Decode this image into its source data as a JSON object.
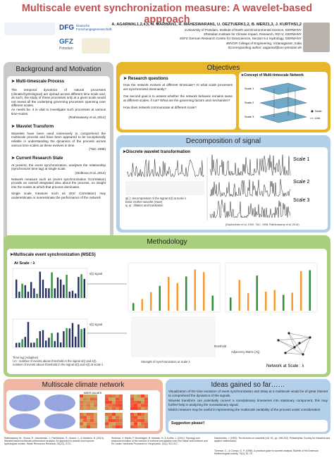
{
  "header": {
    "title": "Multiscale event synchronization measure: A wavelet-based approach",
    "authors": "A. AGARWAL1,2,4,5, N. MARWAN1, R. MAHESWARAN1, U. OEZTUERK1,2, B. MERZ1,3, J. KURTHS1,2",
    "affiliations": [
      "1University of Potsdam, Institute of Earth and Environmental Science, GERMANY",
      "2Potsdam Institute for Climate Impact, Research, RD IV, GERMANY",
      "3GFZ German Research Centre for Geosciences, Section 5.4 Hydrology, GERMANY",
      "4MVGR College of Engineering, Vizianagaram, India",
      "5Corresponding author: aagarwal@uni-potsdam.de"
    ],
    "logos": [
      "DFG",
      "Deutsche Forschungsgemeinschaft",
      "GFZ",
      "Potsdam"
    ]
  },
  "background": {
    "title": "Background and Motivation",
    "sections": [
      {
        "heading": "Multi-timescale Process",
        "paragraphs": [
          "The temporal dynamics of natural processes (climatic/hydrological) are spread across different time scale and, as such, the study of these processes only at a given scale would not reveal all the underlying governing processes spanning over different scales.",
          "As needs be, it is vital to investigate such processes at various time-scales.",
          "(Rathinasamy et al.,2014)"
        ]
      },
      {
        "heading": "Wavelet Transform",
        "paragraphs": [
          "Wavelets have been used extensively to comprehend the multiscale process and have been appeared to be exceptionally reliable in understanding the dynamics of the process across various time scales as these evolves in time.",
          "(T&C 1998)"
        ]
      },
      {
        "heading": "Current Research State",
        "paragraphs": [
          "At present, the event synchronization, analyses the relationship (synchronize/ time lag) at single scale.",
          "(Stolbova et al.,2014)",
          "Network measure such as (event synchronization /Correlation) provide an overall integrated idea about the process, no insight into the scales at which that process dominates.",
          "Single scale measure such as (ES/ Correlation) may underestimate or overestimate the performance of the network"
        ]
      }
    ]
  },
  "objectives": {
    "title": "Objectives",
    "heading": "Research questions",
    "paragraphs": [
      "How the network evolves at different timescale? At what scale processes are synchronized dominantly?",
      "Our second goal is to assess whether the network behavior remains same at different scales, if not? What are the governing factors and mechanism?",
      "How does network communicate at different scale?"
    ],
    "concept_title": "Concept of Multi-timescale Network",
    "concept_labels": [
      "Scale 1",
      "Scale 2",
      "Scale 3",
      "Node",
      "Link"
    ]
  },
  "decomposition": {
    "title": "Decomposition of signal",
    "heading": "Discrete wavelet transformation",
    "scales": [
      "Scale 1",
      "Scale 2",
      "Scale 3"
    ],
    "notes": [
      "ψ(.): decomposition of the signal s(t) at scale λ",
      "basic mother wavelet (Haar)",
      "φ, ψ : dilation and translation"
    ],
    "citation": "(Daubechies et al.,1992; T&C, 1998; Rathinasamy et al.,2014)"
  },
  "methodology": {
    "title": "Methodology",
    "heading": "Multiscale event synchronization (MSES)",
    "scale_label": "At Scale : λ",
    "signal_labels": [
      "s(t) signal",
      "s(t) signal"
    ],
    "notes": [
      "Time lag (Adaptive)",
      "l,m : number of events above threshold in the signal s(t) and s(t)",
      "number of events above threshold in the signal s(t) and s(t) at scale λ"
    ],
    "sync_note": "Strength of synchronization at scale λ",
    "threshold": "threshold",
    "adjacency": "Adjacency Matrix (Aij)",
    "network_label": "Network at Scale : λ"
  },
  "climate": {
    "title": "Multiscale climate network",
    "matrix_label": "MSES VALUES"
  },
  "ideas": {
    "title": "Ideas gained so far……",
    "bullets": [
      "Visualization of the time evolution of event synchronization and delay at a multiscale would be of great interest to comprehend the dynamics of the signals.",
      "Wavelet transform can potentially convert a nonstationary timeseries into stationary component, this may further help in analyzing the nonstationary signal.",
      "MSES measure may be useful in representing the multiscale variability of the process under consideration"
    ],
    "suggestion": "Suggestion please!!"
  },
  "references": [
    "Rathinasamy, M., Khosa, R., Adamowski, J., Partheepan, G., Anand, J., & Narsimlu, B. (2014). Wavelet-based multiscale performance analysis: An approach to assess and improve hydrological models. Water Resources Research, 50(12), 9721.",
    "Stolbova, V. Martin, P. Bookhagen, B. Marwan, N. & Kurths, J. (2014). Topology and seasonal evolution of the network of extreme precipitation over the Indian subcontinent and Sri Lanka. Nonlinear Processes in Geophysics, 21(4), 901-917.",
    "Daubechies, I. (1992). Ten lectures on wavelets (Vol. 61, pp. 198-202). Philadelphia: Society for industrial and applied mathematics.",
    "Torrence, C., & Compo, G. P. (1998). A practical guide to wavelet analysis. Bulletin of the American Meteorological society, 79(1), 61-78."
  ]
}
